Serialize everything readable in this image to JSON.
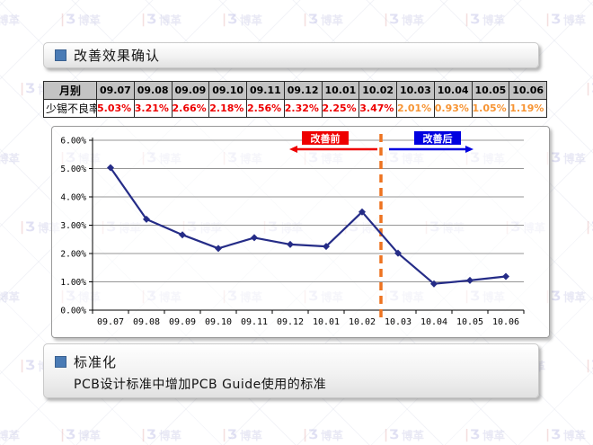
{
  "watermark": {
    "text": "博革",
    "bar_glyph": "|",
    "mark_glyph": "Ʒ"
  },
  "header": {
    "title": "改善效果确认"
  },
  "table": {
    "row_label_header": "月别",
    "row_label_value": "少锡不良率",
    "months": [
      "09.07",
      "09.08",
      "09.09",
      "09.10",
      "09.11",
      "09.12",
      "10.01",
      "10.02",
      "10.03",
      "10.04",
      "10.05",
      "10.06"
    ],
    "values": [
      "5.03%",
      "3.21%",
      "2.66%",
      "2.18%",
      "2.56%",
      "2.32%",
      "2.25%",
      "3.47%",
      "2.01%",
      "0.93%",
      "1.05%",
      "1.19%"
    ],
    "value_colors": [
      "#ee0000",
      "#ee0000",
      "#ee0000",
      "#ee0000",
      "#ee0000",
      "#ee0000",
      "#ee0000",
      "#ee0000",
      "#f79433",
      "#f79433",
      "#f79433",
      "#f79433"
    ]
  },
  "chart_data": {
    "type": "line",
    "title": "",
    "xlabel": "",
    "ylabel": "",
    "categories": [
      "09.07",
      "09.08",
      "09.09",
      "09.10",
      "09.11",
      "09.12",
      "10.01",
      "10.02",
      "10.03",
      "10.04",
      "10.05",
      "10.06"
    ],
    "series": [
      {
        "name": "少锡不良率",
        "values": [
          5.03,
          3.21,
          2.66,
          2.18,
          2.56,
          2.32,
          2.25,
          3.47,
          2.01,
          0.93,
          1.05,
          1.19
        ]
      }
    ],
    "ylim": [
      0,
      6
    ],
    "ytick_step": 1,
    "yticks": [
      "0.00%",
      "1.00%",
      "2.00%",
      "3.00%",
      "4.00%",
      "5.00%",
      "6.00%"
    ],
    "grid": "horizontal",
    "legend": "none",
    "annotations": {
      "divider_after_index": 7,
      "before_label": "改善前",
      "after_label": "改善后"
    },
    "colors": {
      "line": "#252c87",
      "grid": "#969696",
      "axis": "#000000",
      "divider": "#ee7320",
      "before": "#ee0000",
      "after": "#0000e0",
      "label_text": "#ffffff"
    }
  },
  "footer": {
    "title": "标准化",
    "body": "PCB设计标准中增加PCB Guide使用的标准"
  }
}
